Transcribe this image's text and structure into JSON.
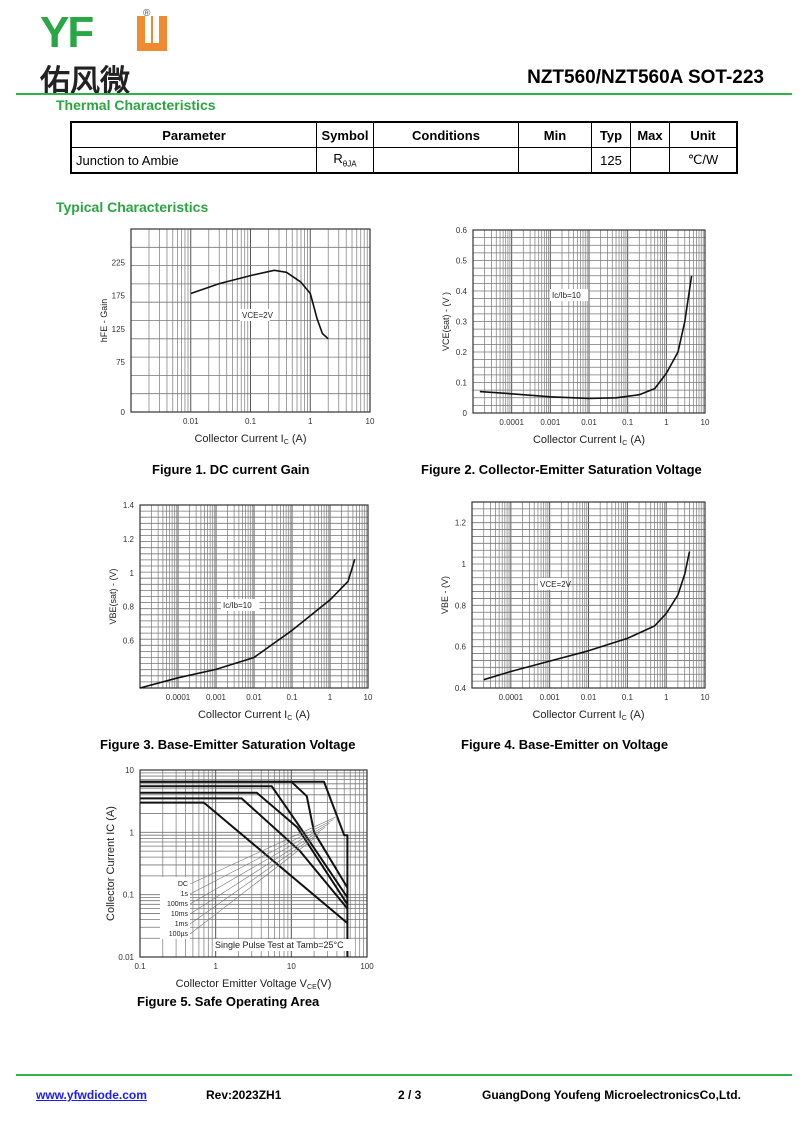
{
  "header": {
    "logo_text": "YFW",
    "logo_cn": "佑风微",
    "registered": "®",
    "title": "NZT560/NZT560A SOT-223",
    "accent": "#2db34a"
  },
  "thermal": {
    "heading": "Thermal Characteristics",
    "columns": [
      "Parameter",
      "Symbol",
      "Conditions",
      "Min",
      "Typ",
      "Max",
      "Unit"
    ],
    "rows": [
      {
        "parameter": "Junction to Ambie",
        "symbol": "R",
        "symbol_sub": "θJA",
        "conditions": "",
        "min": "",
        "typ": "125",
        "max": "",
        "unit": "℃/W"
      }
    ]
  },
  "typical": {
    "heading": "Typical Characteristics"
  },
  "chart_data": [
    {
      "id": "fig1",
      "type": "line",
      "caption": "Figure 1. DC current Gain",
      "xlabel": "Collector Current  I",
      "xlabel_sub": "C",
      "xlabel_unit": " (A)",
      "ylabel": "hFE - Gain",
      "xscale": "log",
      "xlim": [
        0.001,
        10
      ],
      "ylim": [
        0,
        275
      ],
      "xticks": [
        {
          "v": 0.01,
          "l": "0.01"
        },
        {
          "v": 0.1,
          "l": "0.1"
        },
        {
          "v": 1,
          "l": "1"
        },
        {
          "v": 10,
          "l": "10"
        }
      ],
      "yticks": [
        0,
        75,
        125,
        175,
        225
      ],
      "annotation": "VCE=2V",
      "grid": true,
      "x": [
        0.01,
        0.03,
        0.1,
        0.25,
        0.4,
        0.7,
        1,
        1.3,
        1.6,
        2
      ],
      "y": [
        178,
        193,
        205,
        213,
        210,
        195,
        178,
        140,
        118,
        110
      ]
    },
    {
      "id": "fig2",
      "type": "line",
      "caption": "Figure 2. Collector-Emitter Saturation Voltage",
      "xlabel": "Collector Current  I",
      "xlabel_sub": "C",
      "xlabel_unit": " (A)",
      "ylabel": "VCE(sat) - (V )",
      "xscale": "log",
      "xlim": [
        1e-05,
        10
      ],
      "ylim": [
        0,
        0.6
      ],
      "xticks": [
        {
          "v": 0.0001,
          "l": "0.0001"
        },
        {
          "v": 0.001,
          "l": "0.001"
        },
        {
          "v": 0.01,
          "l": "0.01"
        },
        {
          "v": 0.1,
          "l": "0.1"
        },
        {
          "v": 1,
          "l": "1"
        },
        {
          "v": 10,
          "l": "10"
        }
      ],
      "yticks": [
        0,
        0.1,
        0.2,
        0.3,
        0.4,
        0.5,
        0.6
      ],
      "annotation": "Ic/Ib=10",
      "grid": true,
      "x": [
        1.5e-05,
        0.0001,
        0.001,
        0.01,
        0.05,
        0.2,
        0.5,
        1,
        2,
        3,
        4.5
      ],
      "y": [
        0.07,
        0.063,
        0.053,
        0.048,
        0.05,
        0.06,
        0.08,
        0.13,
        0.2,
        0.3,
        0.45
      ]
    },
    {
      "id": "fig3",
      "type": "line",
      "caption": "Figure 3. Base-Emitter Saturation Voltage",
      "xlabel": "Collector Current  I",
      "xlabel_sub": "C",
      "xlabel_unit": " (A)",
      "ylabel": "VBE(sat) - (V)",
      "xscale": "log",
      "xlim": [
        1e-05,
        10
      ],
      "ylim": [
        0.32,
        1.4
      ],
      "xticks": [
        {
          "v": 0.0001,
          "l": "0.0001"
        },
        {
          "v": 0.001,
          "l": "0.001"
        },
        {
          "v": 0.01,
          "l": "0.01"
        },
        {
          "v": 0.1,
          "l": "0.1"
        },
        {
          "v": 1,
          "l": "1"
        },
        {
          "v": 10,
          "l": "10"
        }
      ],
      "yticks": [
        0.6,
        0.8,
        1.0,
        1.2,
        1.4
      ],
      "annotation": "Ic/Ib=10",
      "grid": true,
      "x": [
        1e-05,
        0.0001,
        0.001,
        0.01,
        0.1,
        1,
        3,
        4.5
      ],
      "y": [
        0.32,
        0.38,
        0.43,
        0.5,
        0.66,
        0.84,
        0.95,
        1.08
      ]
    },
    {
      "id": "fig4",
      "type": "line",
      "caption": "Figure 4. Base-Emitter on Voltage",
      "xlabel": "Collector Current  I",
      "xlabel_sub": "C",
      "xlabel_unit": " (A)",
      "ylabel": "VBE - (V)",
      "xscale": "log",
      "xlim": [
        1e-05,
        10
      ],
      "ylim": [
        0.4,
        1.3
      ],
      "xticks": [
        {
          "v": 0.0001,
          "l": "0.0001"
        },
        {
          "v": 0.001,
          "l": "0.001"
        },
        {
          "v": 0.01,
          "l": "0.01"
        },
        {
          "v": 0.1,
          "l": "0.1"
        },
        {
          "v": 1,
          "l": "1"
        },
        {
          "v": 10,
          "l": "10"
        }
      ],
      "yticks": [
        0.4,
        0.6,
        0.8,
        1.0,
        1.2
      ],
      "annotation": "VCE=2V",
      "grid": true,
      "x": [
        2e-05,
        0.0001,
        0.001,
        0.01,
        0.1,
        0.5,
        1,
        2,
        3,
        4
      ],
      "y": [
        0.44,
        0.48,
        0.53,
        0.58,
        0.64,
        0.7,
        0.76,
        0.85,
        0.95,
        1.06
      ]
    },
    {
      "id": "fig5",
      "type": "line",
      "caption": "Figure 5. Safe Operating Area",
      "xlabel": "Collector Emitter Voltage V",
      "xlabel_sub": "CE",
      "xlabel_unit": "(V)",
      "ylabel": "Collector Current  IC (A)",
      "xscale": "log",
      "yscale": "log",
      "xlim": [
        0.1,
        100
      ],
      "ylim": [
        0.01,
        10
      ],
      "xticks": [
        {
          "v": 0.1,
          "l": "0.1"
        },
        {
          "v": 1,
          "l": "1"
        },
        {
          "v": 10,
          "l": "10"
        },
        {
          "v": 100,
          "l": "100"
        }
      ],
      "yticks": [
        {
          "v": 0.01,
          "l": "0.01"
        },
        {
          "v": 0.1,
          "l": "0.1"
        },
        {
          "v": 1,
          "l": "1"
        },
        {
          "v": 10,
          "l": "10"
        }
      ],
      "annotation": "Single Pulse Test at Tamb=25°C",
      "grid": true,
      "series": [
        {
          "name": "100µs",
          "x": [
            0.1,
            27,
            50,
            55,
            55
          ],
          "y": [
            6.5,
            6.5,
            0.9,
            0.9,
            0.01
          ]
        },
        {
          "name": "1ms",
          "x": [
            0.1,
            10,
            16,
            20,
            55
          ],
          "y": [
            6.5,
            6.5,
            3.8,
            1,
            0.13
          ]
        },
        {
          "name": "10ms",
          "x": [
            0.1,
            5.5,
            12,
            55
          ],
          "y": [
            5.5,
            5.5,
            1.4,
            0.09
          ]
        },
        {
          "name": "100ms",
          "x": [
            0.1,
            3.5,
            12,
            55
          ],
          "y": [
            4.3,
            4.3,
            1.2,
            0.07
          ]
        },
        {
          "name": "1s",
          "x": [
            0.1,
            2.2,
            13,
            55
          ],
          "y": [
            3.5,
            3.5,
            0.5,
            0.06
          ]
        },
        {
          "name": "DC",
          "x": [
            0.1,
            0.7,
            55
          ],
          "y": [
            3,
            3,
            0.035
          ]
        }
      ],
      "legend_labels": [
        "DC",
        "1s",
        "100ms",
        "10ms",
        "1ms",
        "100µs"
      ]
    }
  ],
  "footer": {
    "website": "www.yfwdiode.com",
    "rev": "Rev:2023ZH1",
    "page": "2 / 3",
    "company": "GuangDong Youfeng MicroelectronicsCo,Ltd."
  }
}
